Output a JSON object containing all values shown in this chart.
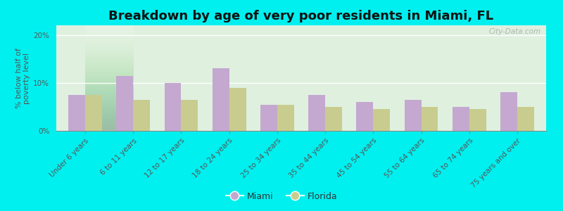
{
  "title": "Breakdown by age of very poor residents in Miami, FL",
  "ylabel": "% below half of\npoverty level",
  "categories": [
    "Under 6 years",
    "6 to 11 years",
    "12 to 17 years",
    "18 to 24 years",
    "25 to 34 years",
    "35 to 44 years",
    "45 to 54 years",
    "55 to 64 years",
    "65 to 74 years",
    "75 years and over"
  ],
  "miami_values": [
    7.5,
    11.5,
    10.0,
    13.0,
    5.5,
    7.5,
    6.0,
    6.5,
    5.0,
    8.0
  ],
  "florida_values": [
    7.5,
    6.5,
    6.5,
    9.0,
    5.5,
    5.0,
    4.5,
    5.0,
    4.5,
    5.0
  ],
  "miami_color": "#c4a8d0",
  "florida_color": "#c8cc8e",
  "background_color": "#00f0f0",
  "plot_bg_color": "#d8f0d8",
  "ylim": [
    0,
    22
  ],
  "yticks": [
    0,
    10,
    20
  ],
  "ytick_labels": [
    "0%",
    "10%",
    "20%"
  ],
  "bar_width": 0.35,
  "title_fontsize": 13,
  "label_fontsize": 8,
  "tick_fontsize": 7.5,
  "legend_miami": "Miami",
  "legend_florida": "Florida",
  "watermark": "City-Data.com"
}
